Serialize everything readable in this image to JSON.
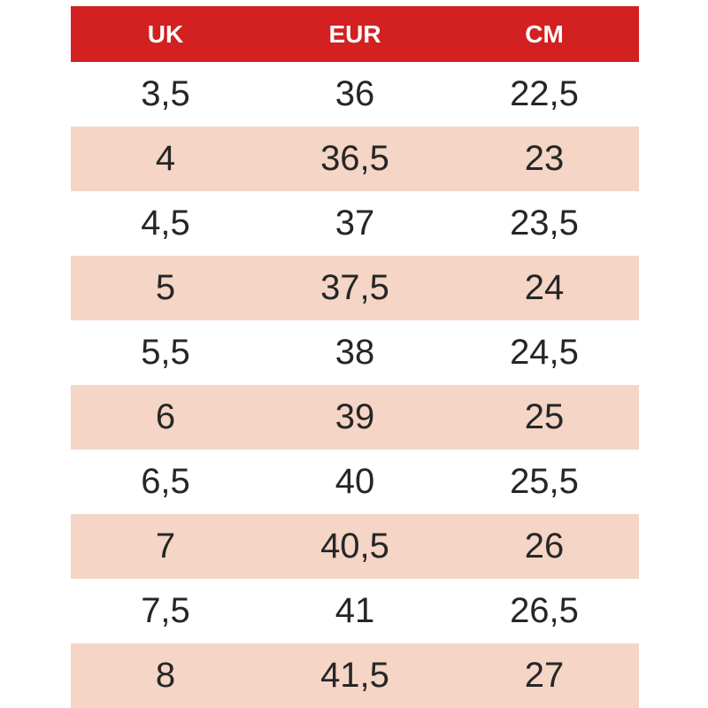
{
  "colors": {
    "page_bg": "#ffffff",
    "header_bg": "#d32020",
    "header_text": "#ffffff",
    "row_bg": "#ffffff",
    "row_alt_bg": "#f4d5c6",
    "cell_text": "#262626"
  },
  "chart_data": {
    "type": "table",
    "columns": [
      "UK",
      "EUR",
      "CM"
    ],
    "rows": [
      [
        "3,5",
        "36",
        "22,5"
      ],
      [
        "4",
        "36,5",
        "23"
      ],
      [
        "4,5",
        "37",
        "23,5"
      ],
      [
        "5",
        "37,5",
        "24"
      ],
      [
        "5,5",
        "38",
        "24,5"
      ],
      [
        "6",
        "39",
        "25"
      ],
      [
        "6,5",
        "40",
        "25,5"
      ],
      [
        "7",
        "40,5",
        "26"
      ],
      [
        "7,5",
        "41",
        "26,5"
      ],
      [
        "8",
        "41,5",
        "27"
      ]
    ],
    "layout": {
      "columns_equal_width": true,
      "text_align": "center",
      "alternating_row_shading": true,
      "grid": false
    }
  }
}
